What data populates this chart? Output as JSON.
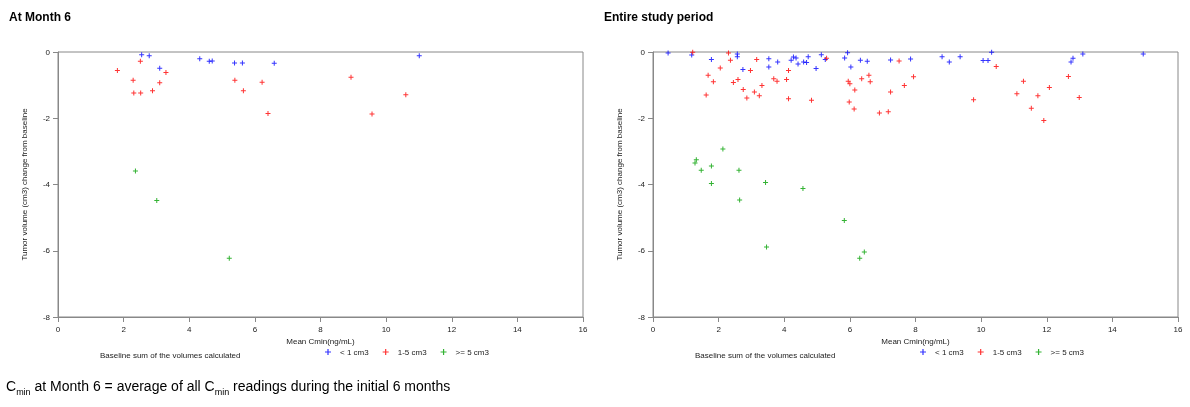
{
  "chart_data": [
    {
      "type": "scatter",
      "title": "At Month 6",
      "xlabel": "Mean Cmin(ng/mL)",
      "ylabel": "Tumor volume (cm3) change from baseline",
      "legend_title": "Baseline sum of the volumes calculated",
      "legend": "bottom",
      "marker": "cross",
      "grid": false,
      "xlim": [
        0,
        16
      ],
      "xticks": [
        0,
        2,
        4,
        6,
        8,
        10,
        12,
        14,
        16
      ],
      "ylim": [
        -8,
        0
      ],
      "yticks": [
        -8,
        -6,
        -4,
        -2,
        0
      ],
      "annotations": [
        "C$_{min}$ at Month 6 = average of all C$_{min}$ readings during the initial 6 months"
      ],
      "series": [
        {
          "name": "< 1 cm3",
          "color": "#0000ff",
          "x": [
            2.55,
            2.78,
            3.1,
            4.32,
            4.61,
            4.7,
            5.38,
            5.62,
            6.59,
            11.01
          ],
          "values": [
            -0.08,
            -0.11,
            -0.49,
            -0.2,
            -0.28,
            -0.27,
            -0.33,
            -0.33,
            -0.34,
            -0.11
          ]
        },
        {
          "name": "1-5 cm3",
          "color": "#ff0000",
          "x": [
            1.81,
            2.29,
            2.31,
            2.52,
            2.51,
            2.88,
            3.1,
            3.29,
            5.39,
            5.65,
            6.22,
            6.4,
            8.93,
            9.57,
            10.6
          ],
          "values": [
            -0.56,
            -0.85,
            -1.24,
            -1.24,
            -0.28,
            -1.17,
            -0.93,
            -0.62,
            -0.85,
            -1.17,
            -0.91,
            -1.86,
            -0.76,
            -1.87,
            -1.29
          ]
        },
        {
          "name": ">= 5 cm3",
          "color": "#00a000",
          "x": [
            2.36,
            3.01,
            5.22
          ],
          "values": [
            -3.59,
            -4.48,
            -6.23
          ]
        }
      ]
    },
    {
      "type": "scatter",
      "title": "Entire study period",
      "xlabel": "Mean Cmin(ng/mL)",
      "ylabel": "Tumor volume (cm3) change from baseline",
      "legend_title": "Baseline sum of the volumes calculated",
      "legend": "bottom",
      "marker": "cross",
      "grid": false,
      "xlim": [
        0,
        16
      ],
      "xticks": [
        0,
        2,
        4,
        6,
        8,
        10,
        12,
        14,
        16
      ],
      "ylim": [
        -8,
        0
      ],
      "yticks": [
        -8,
        -6,
        -4,
        -2,
        0
      ],
      "series": [
        {
          "name": "< 1 cm3",
          "color": "#0000ff",
          "x": [
            0.46,
            1.18,
            1.78,
            2.57,
            2.57,
            2.74,
            3.53,
            3.53,
            3.8,
            4.21,
            4.28,
            4.36,
            4.42,
            4.59,
            4.68,
            4.73,
            4.97,
            5.13,
            5.25,
            5.84,
            5.93,
            6.03,
            6.32,
            6.53,
            7.24,
            7.85,
            8.81,
            9.03,
            9.36,
            10.06,
            10.21,
            10.32,
            12.74,
            12.8,
            13.1,
            14.94
          ],
          "values": [
            -0.03,
            -0.09,
            -0.23,
            -0.06,
            -0.14,
            -0.53,
            -0.2,
            -0.45,
            -0.3,
            -0.25,
            -0.15,
            -0.18,
            -0.36,
            -0.3,
            -0.32,
            -0.14,
            -0.5,
            -0.08,
            -0.23,
            -0.18,
            -0.02,
            -0.45,
            -0.25,
            -0.28,
            -0.24,
            -0.21,
            -0.14,
            -0.3,
            -0.14,
            -0.26,
            -0.26,
            -0.01,
            -0.3,
            -0.19,
            -0.06,
            -0.06
          ]
        },
        {
          "name": "1-5 cm3",
          "color": "#ff0000",
          "x": [
            1.21,
            1.68,
            1.62,
            1.84,
            2.05,
            2.3,
            2.36,
            2.45,
            2.59,
            2.75,
            2.86,
            2.97,
            3.09,
            3.16,
            3.24,
            3.32,
            3.68,
            3.78,
            4.07,
            4.13,
            4.13,
            4.83,
            5.29,
            5.95,
            6.0,
            5.98,
            6.13,
            6.15,
            6.36,
            6.58,
            6.62,
            6.9,
            7.17,
            7.24,
            7.5,
            7.66,
            7.94,
            9.77,
            10.46,
            11.09,
            11.29,
            11.53,
            11.73,
            11.91,
            12.08,
            12.66,
            12.99
          ],
          "values": [
            -0.01,
            -0.7,
            -1.3,
            -0.9,
            -0.48,
            -0.03,
            -0.25,
            -0.92,
            -0.83,
            -1.13,
            -1.39,
            -0.56,
            -1.21,
            -0.23,
            -1.32,
            -1.01,
            -0.81,
            -0.88,
            -0.83,
            -0.56,
            -1.41,
            -1.46,
            -0.19,
            -0.88,
            -0.96,
            -1.51,
            -1.72,
            -1.15,
            -0.81,
            -0.7,
            -0.9,
            -1.84,
            -1.8,
            -1.21,
            -0.27,
            -1.01,
            -0.75,
            -1.44,
            -0.44,
            -1.26,
            -0.88,
            -1.7,
            -1.32,
            -2.07,
            -1.07,
            -0.74,
            -1.37
          ]
        },
        {
          "name": ">= 5 cm3",
          "color": "#00a000",
          "x": [
            1.32,
            1.28,
            1.47,
            1.78,
            1.78,
            2.13,
            2.62,
            2.64,
            3.43,
            3.46,
            4.57,
            5.83,
            6.3,
            6.44
          ],
          "values": [
            -3.25,
            -3.35,
            -3.57,
            -3.44,
            -3.97,
            -2.93,
            -3.57,
            -4.47,
            -3.94,
            -5.89,
            -4.12,
            -5.09,
            -6.23,
            -6.04
          ]
        }
      ]
    }
  ]
}
